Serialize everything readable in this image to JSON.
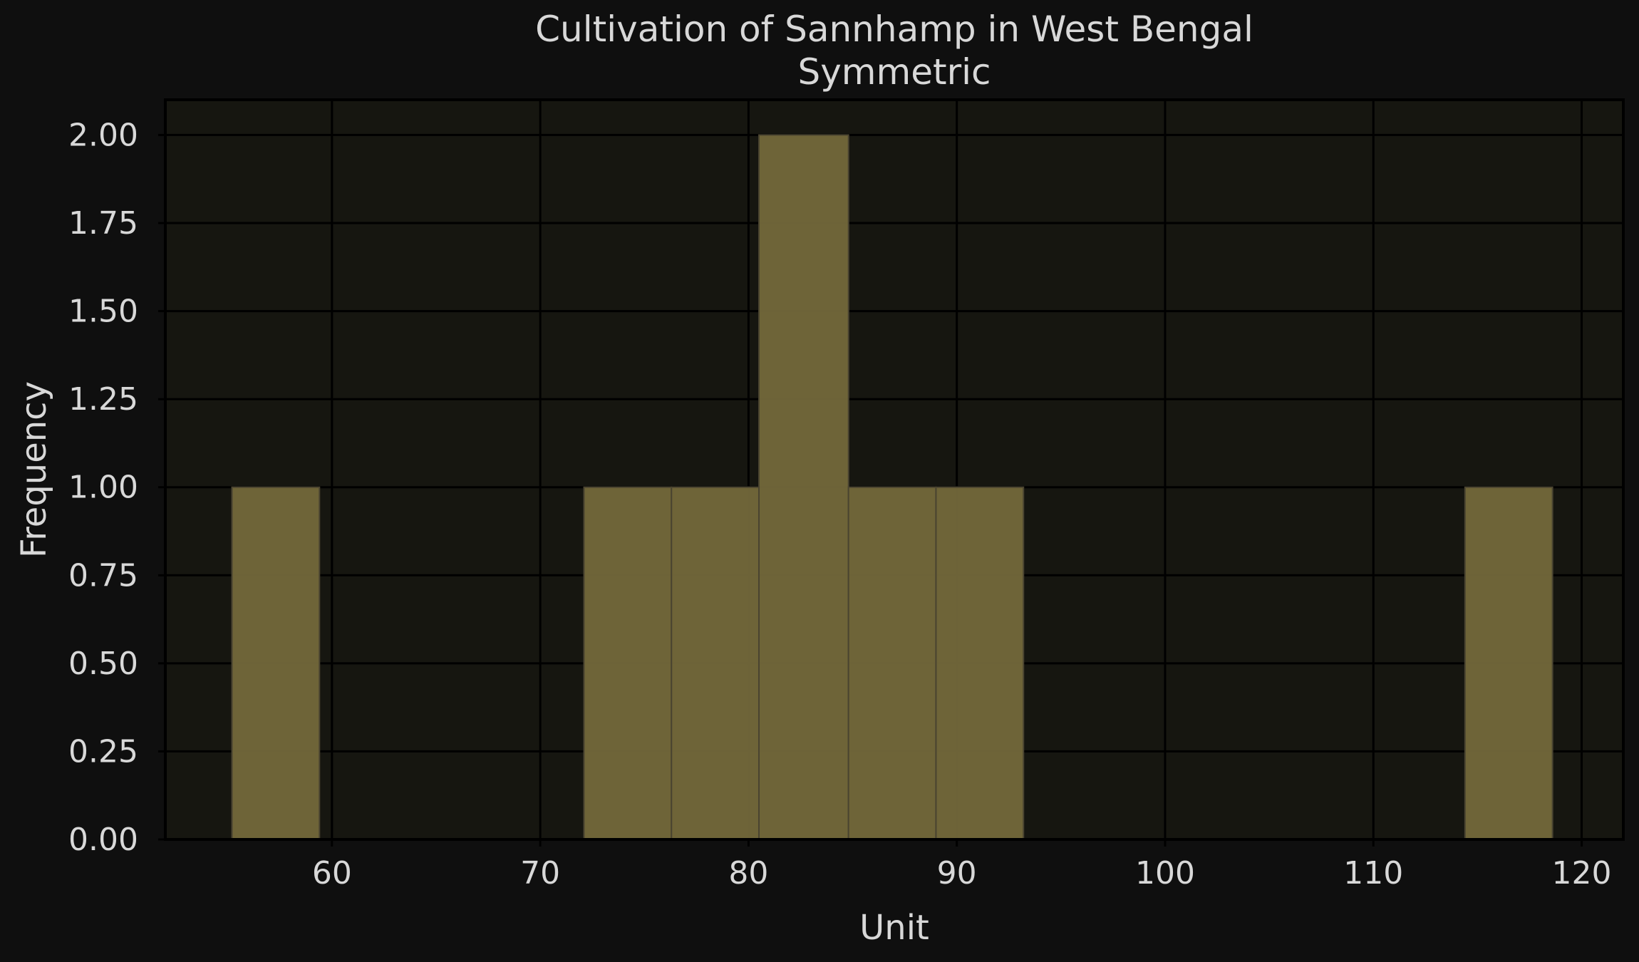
{
  "chart_data": {
    "type": "histogram",
    "title": "Cultivation of Sannhamp in West Bengal",
    "subtitle": "Symmetric",
    "xlabel": "Unit",
    "ylabel": "Frequency",
    "xlim": [
      52,
      122
    ],
    "ylim": [
      0,
      2.1
    ],
    "xticks": [
      60,
      70,
      80,
      90,
      100,
      110,
      120
    ],
    "xtick_labels": [
      "60",
      "70",
      "80",
      "90",
      "100",
      "110",
      "120"
    ],
    "yticks": [
      0,
      0.25,
      0.5,
      0.75,
      1.0,
      1.25,
      1.5,
      1.75,
      2.0
    ],
    "ytick_labels": [
      "0.00",
      "0.25",
      "0.50",
      "0.75",
      "1.00",
      "1.25",
      "1.50",
      "1.75",
      "2.00"
    ],
    "bins": [
      {
        "x0": 55.2,
        "x1": 59.4,
        "count": 1
      },
      {
        "x0": 72.1,
        "x1": 76.3,
        "count": 1
      },
      {
        "x0": 76.3,
        "x1": 80.5,
        "count": 1
      },
      {
        "x0": 80.5,
        "x1": 84.8,
        "count": 2
      },
      {
        "x0": 84.8,
        "x1": 89.0,
        "count": 1
      },
      {
        "x0": 89.0,
        "x1": 93.2,
        "count": 1
      },
      {
        "x0": 114.4,
        "x1": 118.6,
        "count": 1
      }
    ],
    "grid": true,
    "colors": {
      "background": "#0f0f0f",
      "plot_background": "#161610",
      "bar_fill": "#73683b",
      "bar_edge": "#4a4430",
      "grid": "#000000",
      "text": "#d8d8d8"
    }
  }
}
